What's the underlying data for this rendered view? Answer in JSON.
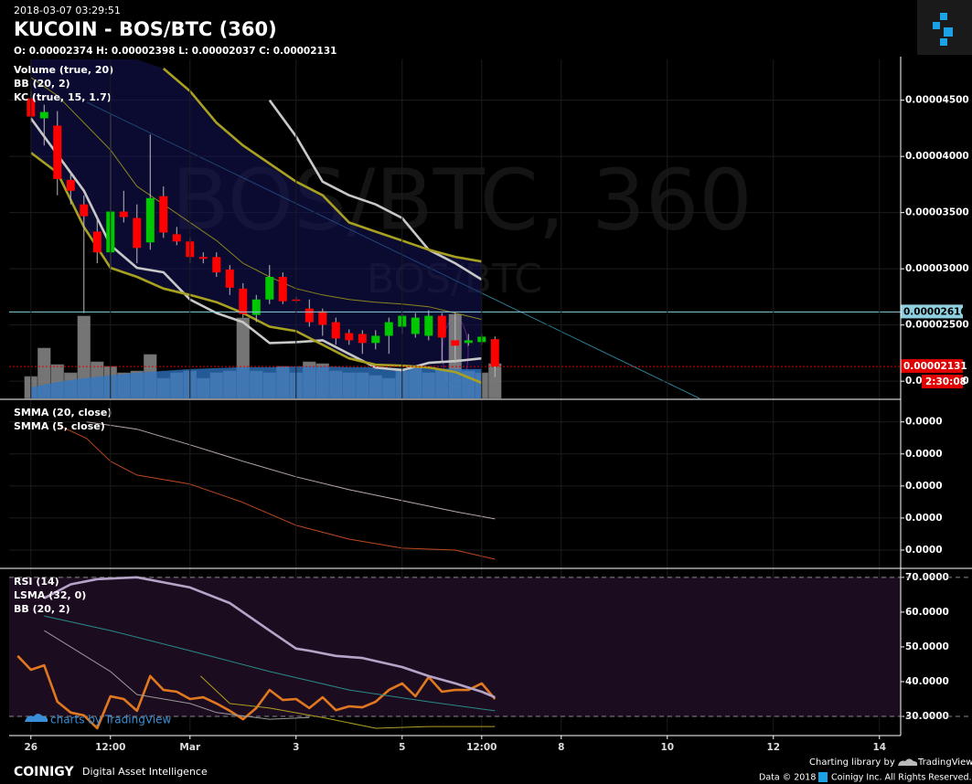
{
  "chart_data": [
    {
      "type": "candlestick",
      "title": "KUCOIN - BOS/BTC (360)",
      "subtitle": "2018-03-07 03:29:51",
      "ohlc_text": "O: 0.00002374 H: 0.00002398 L: 0.00002037 C: 0.00002131",
      "watermark": "BOS/BTC, 360",
      "watermark_small": "BOS/BTC",
      "up_color": "#00c800",
      "down_color": "#ff0000",
      "xlim": [
        -0.41,
        16.4
      ],
      "ylim": [
        1.847e-05,
        4.863e-05
      ],
      "yticks": [
        {
          "value": 2e-05,
          "label": "0.00002000"
        },
        {
          "value": 2.5e-05,
          "label": "0.00002500"
        },
        {
          "value": 3e-05,
          "label": "0.00003000"
        },
        {
          "value": 3.5e-05,
          "label": "0.00003500"
        },
        {
          "value": 4e-05,
          "label": "0.00004000"
        },
        {
          "value": 4.5e-05,
          "label": "0.00004500"
        }
      ],
      "grid": true,
      "x": [
        0,
        0.25,
        0.5,
        0.75,
        1,
        1.25,
        1.5,
        1.75,
        2,
        2.25,
        2.5,
        2.75,
        3,
        3.25,
        3.5,
        3.75,
        4,
        4.25,
        4.5,
        4.75,
        5,
        5.25,
        5.5,
        5.75,
        6,
        6.25,
        6.5,
        6.75,
        7,
        7.25,
        7.5,
        7.75,
        8,
        8.25,
        8.5,
        8.75
      ],
      "open": [
        4.516e-05,
        4.339e-05,
        4.274e-05,
        3.791e-05,
        3.573e-05,
        3.331e-05,
        3.146e-05,
        3.509e-05,
        3.452e-05,
        3.235e-05,
        3.646e-05,
        3.307e-05,
        3.243e-05,
        3.105e-05,
        3.105e-05,
        2.993e-05,
        2.824e-05,
        2.59e-05,
        2.727e-05,
        2.928e-05,
        2.727e-05,
        2.646e-05,
        2.622e-05,
        2.525e-05,
        2.428e-05,
        2.42e-05,
        2.34e-05,
        2.404e-05,
        2.485e-05,
        2.42e-05,
        2.404e-05,
        2.582e-05,
        2.364e-05,
        2.34e-05,
        2.348e-05,
        2.374e-05
      ],
      "high": [
        4.581e-05,
        4.46e-05,
        4.403e-05,
        3.855e-05,
        3.654e-05,
        3.452e-05,
        4.379e-05,
        3.694e-05,
        3.573e-05,
        4.194e-05,
        3.734e-05,
        3.372e-05,
        3.275e-05,
        3.146e-05,
        3.146e-05,
        3.033e-05,
        2.872e-05,
        2.767e-05,
        3.033e-05,
        2.968e-05,
        2.751e-05,
        2.727e-05,
        2.646e-05,
        2.566e-05,
        2.461e-05,
        2.453e-05,
        2.453e-05,
        2.566e-05,
        2.606e-05,
        2.606e-05,
        2.63e-05,
        2.606e-05,
        2.606e-05,
        2.42e-05,
        2.42e-05,
        2.398e-05
      ],
      "low": [
        4.298e-05,
        4.097e-05,
        3.654e-05,
        3.573e-05,
        2.606e-05,
        3.049e-05,
        2.968e-05,
        3.412e-05,
        3.049e-05,
        3.17e-05,
        3.275e-05,
        3.21e-05,
        3.049e-05,
        3.049e-05,
        2.928e-05,
        2.767e-05,
        2.566e-05,
        2.525e-05,
        2.686e-05,
        2.686e-05,
        2.703e-05,
        2.485e-05,
        2.404e-05,
        2.324e-05,
        2.324e-05,
        2.243e-05,
        2.283e-05,
        2.243e-05,
        2.42e-05,
        2.388e-05,
        2.364e-05,
        2.162e-05,
        2.162e-05,
        2.316e-05,
        2.324e-05,
        2.037e-05
      ],
      "close": [
        4.355e-05,
        4.395e-05,
        3.799e-05,
        3.694e-05,
        3.468e-05,
        3.146e-05,
        3.509e-05,
        3.46e-05,
        3.186e-05,
        3.629e-05,
        3.323e-05,
        3.243e-05,
        3.105e-05,
        3.089e-05,
        2.968e-05,
        2.832e-05,
        2.598e-05,
        2.727e-05,
        2.928e-05,
        2.711e-05,
        2.719e-05,
        2.525e-05,
        2.501e-05,
        2.38e-05,
        2.364e-05,
        2.34e-05,
        2.404e-05,
        2.525e-05,
        2.582e-05,
        2.566e-05,
        2.582e-05,
        2.388e-05,
        2.316e-05,
        2.364e-05,
        2.396e-05,
        2.131e-05
      ],
      "price_line": {
        "value": 2.616e-05,
        "label": "0.00002616",
        "color": "#8fd0e0"
      },
      "last_price": {
        "value": 2.131e-05,
        "label": "0.00002131",
        "countdown": "2:30:08",
        "color": "#e00000"
      },
      "overlay_x": [
        0,
        0.5,
        1,
        1.5,
        2,
        2.5,
        3,
        3.5,
        4,
        4.5,
        5,
        5.5,
        6,
        6.5,
        7,
        7.5,
        8,
        8.5
      ],
      "indicators": [
        {
          "name": "Volume (true, 20)",
          "color": "#8a8a8a",
          "ma_color": "#2f78c8",
          "ylim": [
            0,
            370
          ],
          "values": [
            24,
            55,
            37,
            28,
            90,
            40,
            35,
            28,
            30,
            48,
            22,
            28,
            30,
            22,
            28,
            30,
            88,
            30,
            28,
            35,
            28,
            40,
            38,
            30,
            28,
            28,
            25,
            22,
            30,
            35,
            28,
            32,
            92,
            30,
            28,
            38
          ],
          "ma": [
            12,
            18,
            22,
            25,
            28,
            30,
            32,
            33,
            34,
            34,
            35,
            35,
            34,
            34,
            33,
            33,
            32,
            32
          ]
        },
        {
          "name": "BB (20, 2)",
          "lines": [
            {
              "color": "#c8c8c8",
              "bold": true,
              "values": [
                null,
                null,
                null,
                null,
                null,
                null,
                null,
                null,
                null,
                4.5e-05,
                4.178e-05,
                3.775e-05,
                3.654e-05,
                3.573e-05,
                3.452e-05,
                3.17e-05,
                3.049e-05,
                2.904e-05
              ]
            },
            {
              "color": "#c8c8c8",
              "bold": true,
              "values": [
                4.339e-05,
                4.016e-05,
                3.694e-05,
                3.21e-05,
                3.009e-05,
                2.969e-05,
                2.727e-05,
                2.606e-05,
                2.525e-05,
                2.34e-05,
                2.348e-05,
                2.364e-05,
                2.243e-05,
                2.122e-05,
                2.098e-05,
                2.163e-05,
                2.179e-05,
                2.203e-05
              ]
            }
          ]
        },
        {
          "name": "KC (true, 15, 1.7)",
          "fill": "#14145a",
          "lines": [
            {
              "color": "#a8a020",
              "bold": true,
              "values": [
                null,
                null,
                null,
                null,
                null,
                4.782e-05,
                4.581e-05,
                4.299e-05,
                4.097e-05,
                3.936e-05,
                3.775e-05,
                3.654e-05,
                3.412e-05,
                3.331e-05,
                3.251e-05,
                3.17e-05,
                3.106e-05,
                3.065e-05
              ]
            },
            {
              "color": "#8a8420",
              "bold": false,
              "values": [
                4.702e-05,
                4.54e-05,
                4.299e-05,
                4.057e-05,
                3.734e-05,
                3.573e-05,
                3.412e-05,
                3.251e-05,
                3.049e-05,
                2.928e-05,
                2.824e-05,
                2.767e-05,
                2.727e-05,
                2.703e-05,
                2.687e-05,
                2.662e-05,
                2.606e-05,
                2.549e-05
              ]
            },
            {
              "color": "#a8a020",
              "bold": true,
              "values": [
                4.033e-05,
                3.855e-05,
                3.372e-05,
                3.009e-05,
                2.928e-05,
                2.824e-05,
                2.767e-05,
                2.703e-05,
                2.606e-05,
                2.485e-05,
                2.445e-05,
                2.324e-05,
                2.203e-05,
                2.146e-05,
                2.138e-05,
                2.122e-05,
                2.082e-05,
                1.985e-05
              ]
            }
          ]
        }
      ]
    },
    {
      "type": "line",
      "xlim": [
        -0.41,
        16.4
      ],
      "ylim": [
        1.743e-05,
        4.31e-05
      ],
      "yticks": [
        {
          "value": 4e-05,
          "label": "0.0000"
        },
        {
          "value": 3.5e-05,
          "label": "0.0000"
        },
        {
          "value": 3e-05,
          "label": "0.0000"
        },
        {
          "value": 2.5e-05,
          "label": "0.0000"
        },
        {
          "value": 2e-05,
          "label": "0.0000"
        }
      ],
      "grid": true,
      "series": [
        {
          "name": "SMMA (20, close)",
          "lines": [
            {
              "color": "#b8a8a8",
              "bold": false,
              "x": [
                1.05,
                2,
                3,
                4,
                5,
                6,
                7,
                8,
                8.75
              ],
              "values": [
                4e-05,
                3.886e-05,
                3.643e-05,
                3.386e-05,
                3.143e-05,
                2.943e-05,
                2.771e-05,
                2.6e-05,
                2.486e-05
              ]
            }
          ]
        },
        {
          "name": "SMMA (5, close)",
          "lines": [
            {
              "color": "#c04820",
              "bold": false,
              "x": [
                0.5,
                1.05,
                1.5,
                2,
                3,
                4,
                5,
                6,
                7,
                8,
                8.75
              ],
              "values": [
                3.957e-05,
                3.743e-05,
                3.386e-05,
                3.171e-05,
                3.029e-05,
                2.743e-05,
                2.386e-05,
                2.171e-05,
                2.029e-05,
                2e-05,
                1.857e-05
              ]
            }
          ]
        }
      ]
    },
    {
      "type": "line",
      "xlim": [
        -0.41,
        16.4
      ],
      "ylim": [
        25.8,
        71.8
      ],
      "yticks": [
        {
          "value": 30,
          "label": "30.0000"
        },
        {
          "value": 40,
          "label": "40.0000"
        },
        {
          "value": 50,
          "label": "50.0000"
        },
        {
          "value": 60,
          "label": "60.0000"
        },
        {
          "value": 70,
          "label": "70.0000"
        }
      ],
      "xticks": [
        {
          "value": 0,
          "label": "26"
        },
        {
          "value": 1.5,
          "label": "12:00"
        },
        {
          "value": 3,
          "label": "Mar"
        },
        {
          "value": 5,
          "label": "3"
        },
        {
          "value": 7,
          "label": "5"
        },
        {
          "value": 8.5,
          "label": "12:00"
        },
        {
          "value": 10,
          "label": "8"
        },
        {
          "value": 12,
          "label": "10"
        },
        {
          "value": 14,
          "label": "12"
        },
        {
          "value": 16,
          "label": "14"
        }
      ],
      "grid": true,
      "levels": [
        30,
        70
      ],
      "band_color": "#1c0c20",
      "series": [
        {
          "name": "RSI (14)",
          "lines": [
            {
              "color": "#e07820",
              "bold": true,
              "x": [
                -0.25,
                0,
                0.25,
                0.5,
                0.75,
                1,
                1.25,
                1.5,
                1.75,
                2,
                2.25,
                2.5,
                2.75,
                3,
                3.25,
                3.5,
                3.75,
                4,
                4.25,
                4.5,
                4.75,
                5,
                5.25,
                5.5,
                5.75,
                6,
                6.25,
                6.5,
                6.75,
                7,
                7.25,
                7.5,
                7.75,
                8,
                8.25,
                8.5,
                8.75
              ],
              "values": [
                47.4,
                43.4,
                44.7,
                34.2,
                31.1,
                30.3,
                26.6,
                35.8,
                35,
                31.6,
                41.6,
                37.6,
                37.1,
                35,
                35.5,
                33.7,
                31.6,
                29.2,
                32.4,
                37.6,
                34.7,
                35,
                32.4,
                35.5,
                31.8,
                32.9,
                32.6,
                34.2,
                37.6,
                39.5,
                35.8,
                41.3,
                37.1,
                37.6,
                37.6,
                39.5,
                35
              ]
            }
          ]
        },
        {
          "name": "LSMA (32, 0)",
          "lines": [
            {
              "color": "#9a9a9a",
              "bold": false,
              "x": [
                0.25,
                1.5,
                2,
                3,
                3.5,
                4.5,
                5.25
              ],
              "values": [
                54.7,
                42.9,
                36.3,
                33.7,
                31.1,
                29.2,
                29.7
              ]
            }
          ]
        },
        {
          "name": "BB (20, 2)",
          "lines": [
            {
              "color": "#b4a4c8",
              "bold": true,
              "x": [
                0.25,
                0.75,
                1.25,
                2,
                3,
                3.75,
                4.5,
                5,
                5.25,
                5.75,
                6.25,
                7,
                7.5,
                8,
                8.5,
                8.75
              ],
              "values": [
                64,
                68,
                69.5,
                70,
                67.1,
                62.6,
                54.7,
                49.5,
                48.9,
                47.4,
                46.8,
                44.2,
                41.6,
                39.5,
                37.1,
                35.5
              ]
            },
            {
              "color": "#2a8a8a",
              "bold": false,
              "x": [
                0.25,
                1.5,
                3,
                4.5,
                6,
                7.5,
                8.75
              ],
              "values": [
                58.9,
                54.7,
                48.9,
                42.9,
                37.6,
                34.2,
                31.6
              ]
            },
            {
              "color": "#b0a020",
              "bold": false,
              "x": [
                3.2,
                3.75,
                4.5,
                5.5,
                6.5,
                7.5,
                8.75
              ],
              "values": [
                41.6,
                33.7,
                32.4,
                29.7,
                26.6,
                27.1,
                27.1
              ]
            }
          ]
        }
      ]
    }
  ],
  "footer": {
    "tv_credit": "charts by TradingView",
    "brand": "COINIGY",
    "tagline": "Digital Asset Intelligence",
    "library": "Charting library by",
    "library_name": "TradingView",
    "data": "Data © 2018",
    "rights": "Coinigy Inc. All Rights Reserved."
  }
}
